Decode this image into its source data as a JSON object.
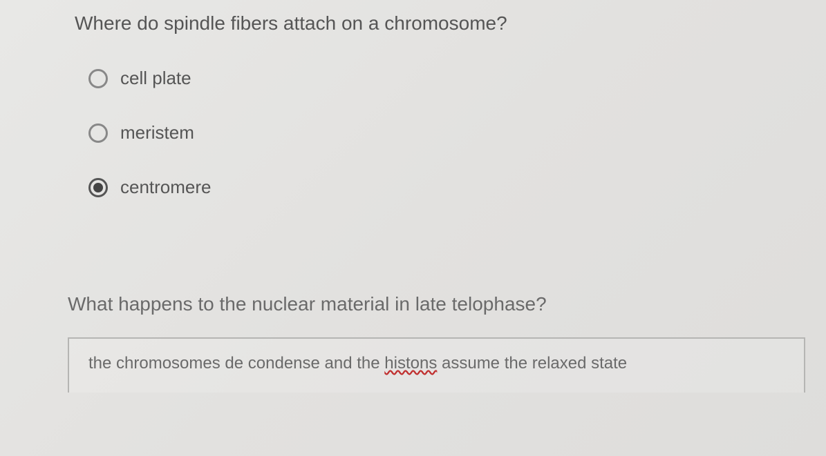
{
  "question1": {
    "text": "Where do spindle fibers attach on a chromosome?",
    "options": [
      {
        "label": "cell plate",
        "selected": false
      },
      {
        "label": "meristem",
        "selected": false
      },
      {
        "label": "centromere",
        "selected": true
      }
    ]
  },
  "question2": {
    "text": "What happens to the nuclear material in late telophase?",
    "answer_prefix": "the chromosomes de condense and the ",
    "answer_misspelled": "histons",
    "answer_suffix": " assume the relaxed state"
  },
  "styling": {
    "bg_gradient_start": "#e8e8e6",
    "bg_gradient_end": "#dedddb",
    "text_color": "#555555",
    "radio_border": "#888888",
    "radio_selected_border": "#555555",
    "radio_dot": "#444444",
    "answer_border": "#b5b5b3",
    "misspell_underline": "#c03030",
    "question_fontsize": 28,
    "option_fontsize": 26,
    "answer_fontsize": 24
  }
}
